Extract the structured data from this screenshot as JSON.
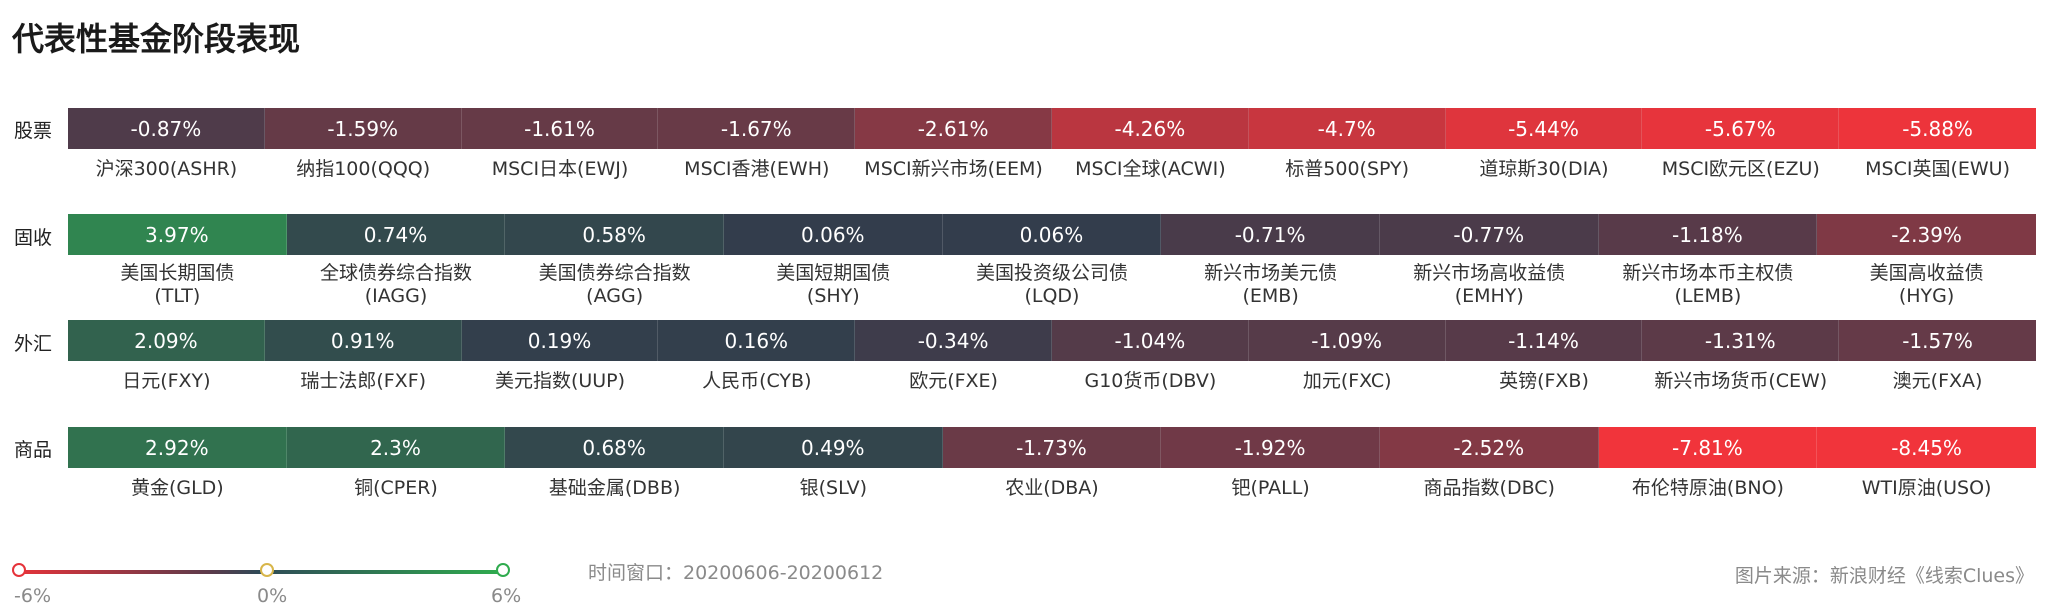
{
  "title": "代表性基金阶段表现",
  "window_text": "时间窗口：20200606-20200612",
  "source_text": "图片来源：新浪财经《线索Clues》",
  "legend": {
    "min_label": "-6%",
    "mid_label": "0%",
    "max_label": "6%",
    "stops": [
      -6,
      0,
      6
    ],
    "colors": {
      "neg": "#f1343b",
      "neutral": "#333c4c",
      "pos": "#2faa52"
    }
  },
  "chart_data": {
    "type": "heatmap",
    "value_unit": "%",
    "color_range": [
      -6,
      6
    ],
    "rows": [
      {
        "label": "股票",
        "items": [
          {
            "name": "沪深300(ASHR)",
            "value": -0.87,
            "display": "-0.87%"
          },
          {
            "name": "纳指100(QQQ)",
            "value": -1.59,
            "display": "-1.59%"
          },
          {
            "name": "MSCI日本(EWJ)",
            "value": -1.61,
            "display": "-1.61%"
          },
          {
            "name": "MSCI香港(EWH)",
            "value": -1.67,
            "display": "-1.67%"
          },
          {
            "name": "MSCI新兴市场(EEM)",
            "value": -2.61,
            "display": "-2.61%"
          },
          {
            "name": "MSCI全球(ACWI)",
            "value": -4.26,
            "display": "-4.26%"
          },
          {
            "name": "标普500(SPY)",
            "value": -4.7,
            "display": "-4.7%"
          },
          {
            "name": "道琼斯30(DIA)",
            "value": -5.44,
            "display": "-5.44%"
          },
          {
            "name": "MSCI欧元区(EZU)",
            "value": -5.67,
            "display": "-5.67%"
          },
          {
            "name": "MSCI英国(EWU)",
            "value": -5.88,
            "display": "-5.88%"
          }
        ]
      },
      {
        "label": "固收",
        "items": [
          {
            "name": "美国长期国债\n(TLT)",
            "value": 3.97,
            "display": "3.97%"
          },
          {
            "name": "全球债券综合指数\n(IAGG)",
            "value": 0.74,
            "display": "0.74%"
          },
          {
            "name": "美国债券综合指数\n(AGG)",
            "value": 0.58,
            "display": "0.58%"
          },
          {
            "name": "美国短期国债\n(SHY)",
            "value": 0.06,
            "display": "0.06%"
          },
          {
            "name": "美国投资级公司债\n(LQD)",
            "value": 0.06,
            "display": "0.06%"
          },
          {
            "name": "新兴市场美元债\n(EMB)",
            "value": -0.71,
            "display": "-0.71%"
          },
          {
            "name": "新兴市场高收益债\n(EMHY)",
            "value": -0.77,
            "display": "-0.77%"
          },
          {
            "name": "新兴市场本币主权债\n(LEMB)",
            "value": -1.18,
            "display": "-1.18%"
          },
          {
            "name": "美国高收益债\n(HYG)",
            "value": -2.39,
            "display": "-2.39%"
          }
        ]
      },
      {
        "label": "外汇",
        "items": [
          {
            "name": "日元(FXY)",
            "value": 2.09,
            "display": "2.09%"
          },
          {
            "name": "瑞士法郎(FXF)",
            "value": 0.91,
            "display": "0.91%"
          },
          {
            "name": "美元指数(UUP)",
            "value": 0.19,
            "display": "0.19%"
          },
          {
            "name": "人民币(CYB)",
            "value": 0.16,
            "display": "0.16%"
          },
          {
            "name": "欧元(FXE)",
            "value": -0.34,
            "display": "-0.34%"
          },
          {
            "name": "G10货币(DBV)",
            "value": -1.04,
            "display": "-1.04%"
          },
          {
            "name": "加元(FXC)",
            "value": -1.09,
            "display": "-1.09%"
          },
          {
            "name": "英镑(FXB)",
            "value": -1.14,
            "display": "-1.14%"
          },
          {
            "name": "新兴市场货币(CEW)",
            "value": -1.31,
            "display": "-1.31%"
          },
          {
            "name": "澳元(FXA)",
            "value": -1.57,
            "display": "-1.57%"
          }
        ]
      },
      {
        "label": "商品",
        "items": [
          {
            "name": "黄金(GLD)",
            "value": 2.92,
            "display": "2.92%"
          },
          {
            "name": "铜(CPER)",
            "value": 2.3,
            "display": "2.3%"
          },
          {
            "name": "基础金属(DBB)",
            "value": 0.68,
            "display": "0.68%"
          },
          {
            "name": "银(SLV)",
            "value": 0.49,
            "display": "0.49%"
          },
          {
            "name": "农业(DBA)",
            "value": -1.73,
            "display": "-1.73%"
          },
          {
            "name": "钯(PALL)",
            "value": -1.92,
            "display": "-1.92%"
          },
          {
            "name": "商品指数(DBC)",
            "value": -2.52,
            "display": "-2.52%"
          },
          {
            "name": "布伦特原油(BNO)",
            "value": -7.81,
            "display": "-7.81%"
          },
          {
            "name": "WTI原油(USO)",
            "value": -8.45,
            "display": "-8.45%"
          }
        ]
      }
    ]
  }
}
